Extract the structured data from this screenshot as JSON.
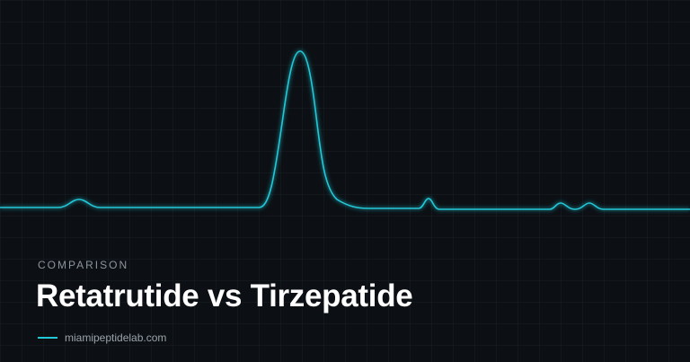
{
  "eyebrow": "COMPARISON",
  "title": "Retatrutide vs Tirzepatide",
  "site": "miamipeptidelab.com"
}
